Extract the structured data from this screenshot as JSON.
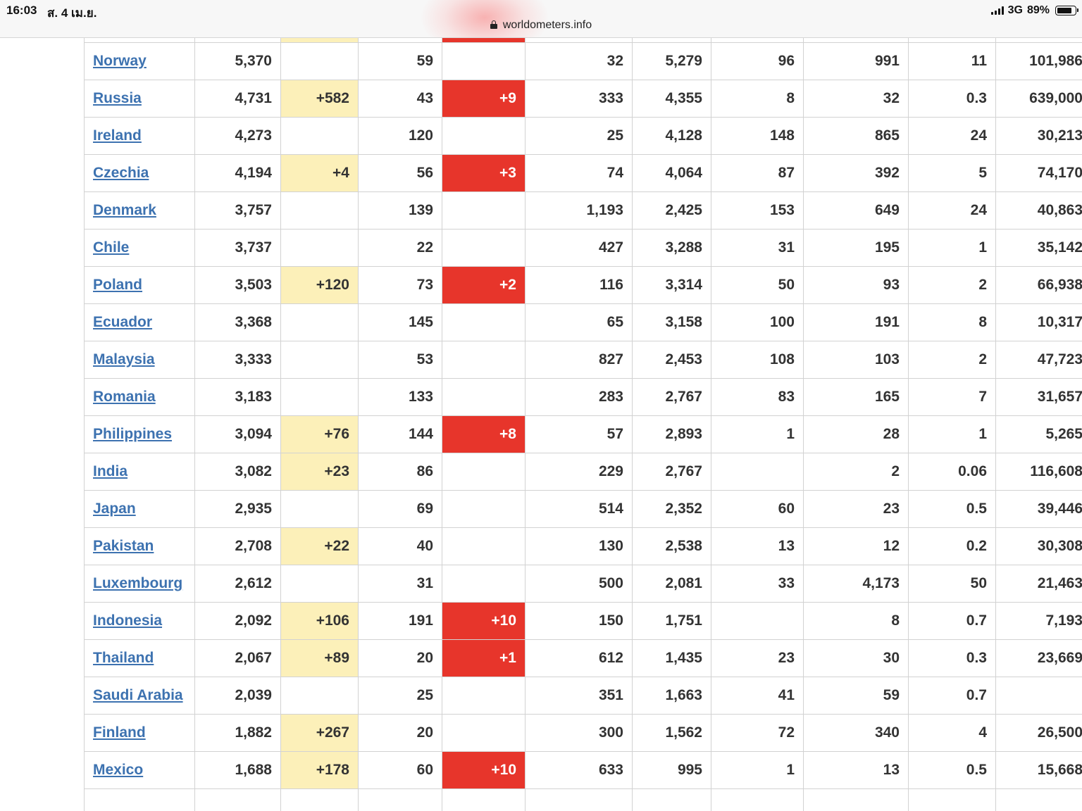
{
  "status_bar": {
    "time": "16:03",
    "date": "ส. 4 เม.ย.",
    "url": "worldometers.info",
    "network": "3G",
    "battery": "89%",
    "battery_level": 0.89
  },
  "colors": {
    "new_cases_highlight": "#fcf0b9",
    "new_deaths_highlight": "#e7352b",
    "country_link": "#3d72b0",
    "grid": "#d2d2d2"
  },
  "table": {
    "rows": [
      {
        "country": "",
        "total_cases": "",
        "new_cases": "",
        "total_deaths": "",
        "new_deaths": "",
        "total_recovered": "",
        "active_cases": "",
        "serious_critical": "",
        "cases_per_1m": "",
        "deaths_per_1m": "",
        "total_tests": "",
        "hl_cases": true,
        "hl_deaths": true
      },
      {
        "country": "Norway",
        "total_cases": "5,370",
        "new_cases": "",
        "total_deaths": "59",
        "new_deaths": "",
        "total_recovered": "32",
        "active_cases": "5,279",
        "serious_critical": "96",
        "cases_per_1m": "991",
        "deaths_per_1m": "11",
        "total_tests": "101,986",
        "hl_cases": false,
        "hl_deaths": false
      },
      {
        "country": "Russia",
        "total_cases": "4,731",
        "new_cases": "+582",
        "total_deaths": "43",
        "new_deaths": "+9",
        "total_recovered": "333",
        "active_cases": "4,355",
        "serious_critical": "8",
        "cases_per_1m": "32",
        "deaths_per_1m": "0.3",
        "total_tests": "639,000",
        "hl_cases": true,
        "hl_deaths": true
      },
      {
        "country": "Ireland",
        "total_cases": "4,273",
        "new_cases": "",
        "total_deaths": "120",
        "new_deaths": "",
        "total_recovered": "25",
        "active_cases": "4,128",
        "serious_critical": "148",
        "cases_per_1m": "865",
        "deaths_per_1m": "24",
        "total_tests": "30,213",
        "hl_cases": false,
        "hl_deaths": false
      },
      {
        "country": "Czechia",
        "total_cases": "4,194",
        "new_cases": "+4",
        "total_deaths": "56",
        "new_deaths": "+3",
        "total_recovered": "74",
        "active_cases": "4,064",
        "serious_critical": "87",
        "cases_per_1m": "392",
        "deaths_per_1m": "5",
        "total_tests": "74,170",
        "hl_cases": true,
        "hl_deaths": true
      },
      {
        "country": "Denmark",
        "total_cases": "3,757",
        "new_cases": "",
        "total_deaths": "139",
        "new_deaths": "",
        "total_recovered": "1,193",
        "active_cases": "2,425",
        "serious_critical": "153",
        "cases_per_1m": "649",
        "deaths_per_1m": "24",
        "total_tests": "40,863",
        "hl_cases": false,
        "hl_deaths": false
      },
      {
        "country": "Chile",
        "total_cases": "3,737",
        "new_cases": "",
        "total_deaths": "22",
        "new_deaths": "",
        "total_recovered": "427",
        "active_cases": "3,288",
        "serious_critical": "31",
        "cases_per_1m": "195",
        "deaths_per_1m": "1",
        "total_tests": "35,142",
        "hl_cases": false,
        "hl_deaths": false
      },
      {
        "country": "Poland",
        "total_cases": "3,503",
        "new_cases": "+120",
        "total_deaths": "73",
        "new_deaths": "+2",
        "total_recovered": "116",
        "active_cases": "3,314",
        "serious_critical": "50",
        "cases_per_1m": "93",
        "deaths_per_1m": "2",
        "total_tests": "66,938",
        "hl_cases": true,
        "hl_deaths": true
      },
      {
        "country": "Ecuador",
        "total_cases": "3,368",
        "new_cases": "",
        "total_deaths": "145",
        "new_deaths": "",
        "total_recovered": "65",
        "active_cases": "3,158",
        "serious_critical": "100",
        "cases_per_1m": "191",
        "deaths_per_1m": "8",
        "total_tests": "10,317",
        "hl_cases": false,
        "hl_deaths": false
      },
      {
        "country": "Malaysia",
        "total_cases": "3,333",
        "new_cases": "",
        "total_deaths": "53",
        "new_deaths": "",
        "total_recovered": "827",
        "active_cases": "2,453",
        "serious_critical": "108",
        "cases_per_1m": "103",
        "deaths_per_1m": "2",
        "total_tests": "47,723",
        "hl_cases": false,
        "hl_deaths": false
      },
      {
        "country": "Romania",
        "total_cases": "3,183",
        "new_cases": "",
        "total_deaths": "133",
        "new_deaths": "",
        "total_recovered": "283",
        "active_cases": "2,767",
        "serious_critical": "83",
        "cases_per_1m": "165",
        "deaths_per_1m": "7",
        "total_tests": "31,657",
        "hl_cases": false,
        "hl_deaths": false
      },
      {
        "country": "Philippines",
        "total_cases": "3,094",
        "new_cases": "+76",
        "total_deaths": "144",
        "new_deaths": "+8",
        "total_recovered": "57",
        "active_cases": "2,893",
        "serious_critical": "1",
        "cases_per_1m": "28",
        "deaths_per_1m": "1",
        "total_tests": "5,265",
        "hl_cases": true,
        "hl_deaths": true
      },
      {
        "country": "India",
        "total_cases": "3,082",
        "new_cases": "+23",
        "total_deaths": "86",
        "new_deaths": "",
        "total_recovered": "229",
        "active_cases": "2,767",
        "serious_critical": "",
        "cases_per_1m": "2",
        "deaths_per_1m": "0.06",
        "total_tests": "116,608",
        "hl_cases": true,
        "hl_deaths": false
      },
      {
        "country": "Japan",
        "total_cases": "2,935",
        "new_cases": "",
        "total_deaths": "69",
        "new_deaths": "",
        "total_recovered": "514",
        "active_cases": "2,352",
        "serious_critical": "60",
        "cases_per_1m": "23",
        "deaths_per_1m": "0.5",
        "total_tests": "39,446",
        "hl_cases": false,
        "hl_deaths": false
      },
      {
        "country": "Pakistan",
        "total_cases": "2,708",
        "new_cases": "+22",
        "total_deaths": "40",
        "new_deaths": "",
        "total_recovered": "130",
        "active_cases": "2,538",
        "serious_critical": "13",
        "cases_per_1m": "12",
        "deaths_per_1m": "0.2",
        "total_tests": "30,308",
        "hl_cases": true,
        "hl_deaths": false
      },
      {
        "country": "Luxembourg",
        "total_cases": "2,612",
        "new_cases": "",
        "total_deaths": "31",
        "new_deaths": "",
        "total_recovered": "500",
        "active_cases": "2,081",
        "serious_critical": "33",
        "cases_per_1m": "4,173",
        "deaths_per_1m": "50",
        "total_tests": "21,463",
        "hl_cases": false,
        "hl_deaths": false
      },
      {
        "country": "Indonesia",
        "total_cases": "2,092",
        "new_cases": "+106",
        "total_deaths": "191",
        "new_deaths": "+10",
        "total_recovered": "150",
        "active_cases": "1,751",
        "serious_critical": "",
        "cases_per_1m": "8",
        "deaths_per_1m": "0.7",
        "total_tests": "7,193",
        "hl_cases": true,
        "hl_deaths": true
      },
      {
        "country": "Thailand",
        "total_cases": "2,067",
        "new_cases": "+89",
        "total_deaths": "20",
        "new_deaths": "+1",
        "total_recovered": "612",
        "active_cases": "1,435",
        "serious_critical": "23",
        "cases_per_1m": "30",
        "deaths_per_1m": "0.3",
        "total_tests": "23,669",
        "hl_cases": true,
        "hl_deaths": true
      },
      {
        "country": "Saudi Arabia",
        "total_cases": "2,039",
        "new_cases": "",
        "total_deaths": "25",
        "new_deaths": "",
        "total_recovered": "351",
        "active_cases": "1,663",
        "serious_critical": "41",
        "cases_per_1m": "59",
        "deaths_per_1m": "0.7",
        "total_tests": "",
        "hl_cases": false,
        "hl_deaths": false
      },
      {
        "country": "Finland",
        "total_cases": "1,882",
        "new_cases": "+267",
        "total_deaths": "20",
        "new_deaths": "",
        "total_recovered": "300",
        "active_cases": "1,562",
        "serious_critical": "72",
        "cases_per_1m": "340",
        "deaths_per_1m": "4",
        "total_tests": "26,500",
        "hl_cases": true,
        "hl_deaths": false
      },
      {
        "country": "Mexico",
        "total_cases": "1,688",
        "new_cases": "+178",
        "total_deaths": "60",
        "new_deaths": "+10",
        "total_recovered": "633",
        "active_cases": "995",
        "serious_critical": "1",
        "cases_per_1m": "13",
        "deaths_per_1m": "0.5",
        "total_tests": "15,668",
        "hl_cases": true,
        "hl_deaths": true
      },
      {
        "country": "",
        "total_cases": "",
        "new_cases": "",
        "total_deaths": "",
        "new_deaths": "",
        "total_recovered": "",
        "active_cases": "",
        "serious_critical": "",
        "cases_per_1m": "",
        "deaths_per_1m": "",
        "total_tests": "",
        "hl_cases": false,
        "hl_deaths": false
      }
    ]
  }
}
